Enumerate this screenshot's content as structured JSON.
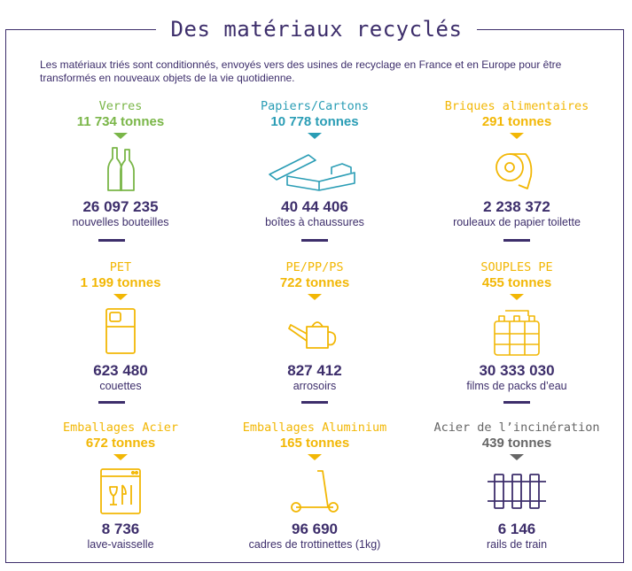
{
  "title": "Des matériaux recyclés",
  "intro": "Les matériaux triés sont conditionnés, envoyés vers des usines de recyclage en France et en Europe pour être transformés en nouveaux objets de la vie quotidienne.",
  "colors": {
    "green": "#7ab648",
    "teal": "#2a9db5",
    "yellow": "#f2b705",
    "gray": "#666666",
    "navy": "#3d2e6b"
  },
  "items": [
    {
      "category": "Verres",
      "tons": "11 734 tonnes",
      "number": "26 097 235",
      "product": "nouvelles bouteilles",
      "icon": "bottles-icon"
    },
    {
      "category": "Papiers/Cartons",
      "tons": "10 778 tonnes",
      "number": "40 44 406",
      "product": "boîtes à chaussures",
      "icon": "shoebox-icon"
    },
    {
      "category": "Briques alimentaires",
      "tons": "291 tonnes",
      "number": "2 238 372",
      "product": "rouleaux de papier toilette",
      "icon": "toilet-paper-icon"
    },
    {
      "category": "PET",
      "tons": "1 199 tonnes",
      "number": "623 480",
      "product": "couettes",
      "icon": "duvet-icon"
    },
    {
      "category": "PE/PP/PS",
      "tons": "722 tonnes",
      "number": "827 412",
      "product": "arrosoirs",
      "icon": "watering-can-icon"
    },
    {
      "category": "SOUPLES PE",
      "tons": "455 tonnes",
      "number": "30 333 030",
      "product": "films de packs d’eau",
      "icon": "water-pack-icon"
    },
    {
      "category": "Emballages Acier",
      "tons": "672 tonnes",
      "number": "8 736",
      "product": "lave-vaisselle",
      "icon": "dishwasher-icon"
    },
    {
      "category": "Emballages Aluminium",
      "tons": "165 tonnes",
      "number": "96 690",
      "product": "cadres de trottinettes (1kg)",
      "icon": "scooter-icon"
    },
    {
      "category": "Acier de l’incinération",
      "tons": "439 tonnes",
      "number": "6 146",
      "product": "rails de train",
      "icon": "rails-icon"
    }
  ]
}
